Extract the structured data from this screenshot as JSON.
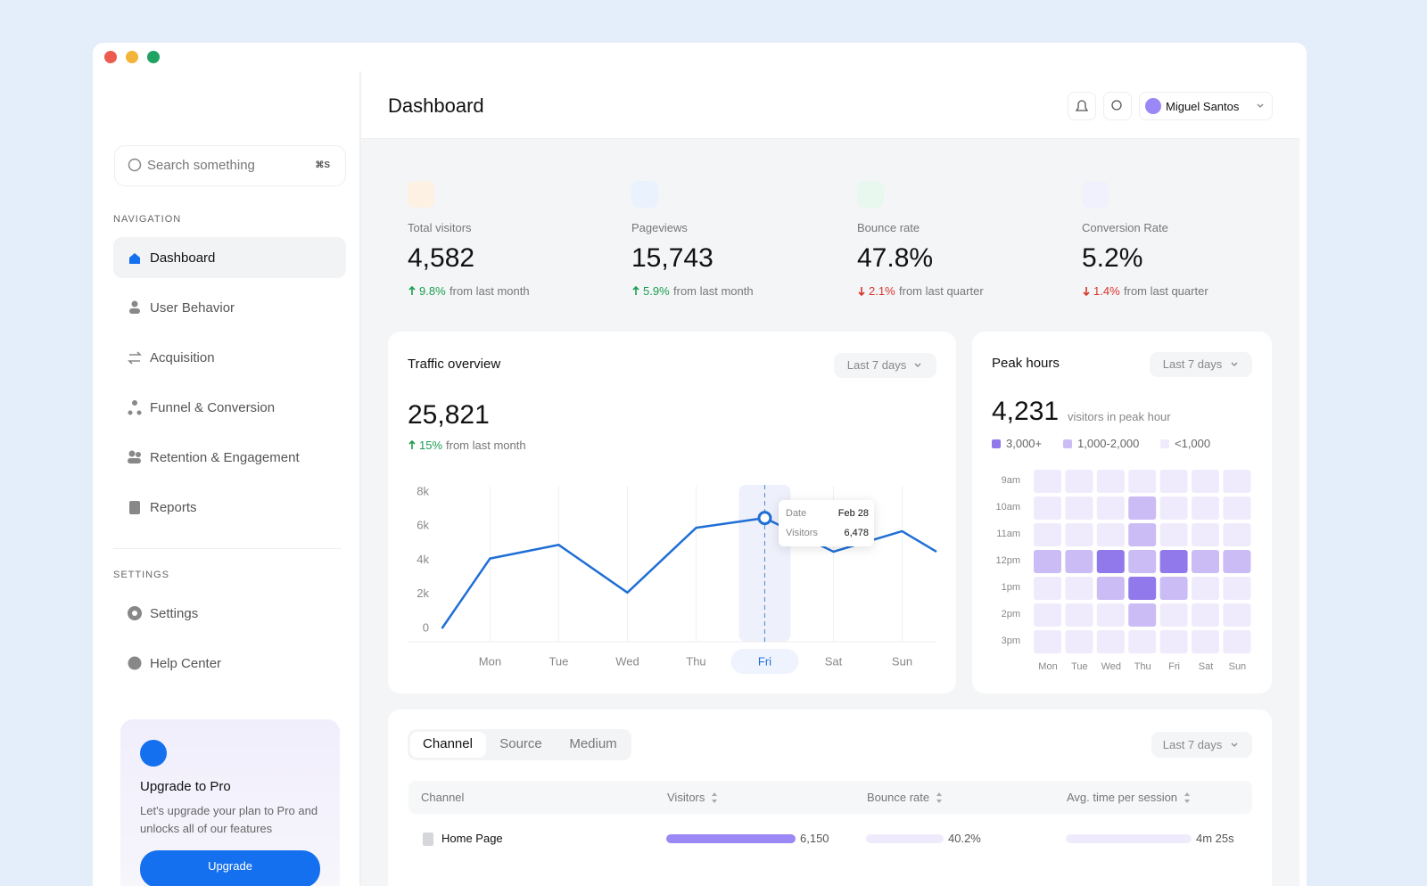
{
  "sidebar": {
    "search": {
      "placeholder": "Search something",
      "shortcut": "⌘S"
    },
    "navigation": {
      "heading": "NAVIGATION",
      "items": [
        "Dashboard",
        "User Behavior",
        "Acquisition",
        "Funnel & Conversion",
        "Retention & Engagement",
        "Reports"
      ],
      "active": 0
    },
    "settings": {
      "heading": "SETTINGS",
      "items": [
        "Settings",
        "Help Center"
      ]
    },
    "upgrade": {
      "title": "Upgrade to Pro",
      "text": "Let's upgrade your plan to Pro and unlocks all of our features",
      "button": "Upgrade"
    }
  },
  "header": {
    "title": "Dashboard",
    "user": "Miguel Santos"
  },
  "stats": [
    {
      "label": "Total visitors",
      "value": "4,582",
      "change": "9.8%",
      "period": "from last month",
      "trend": "up",
      "color": "#fdf1e3"
    },
    {
      "label": "Pageviews",
      "value": "15,743",
      "change": "5.9%",
      "period": "from last month",
      "trend": "up",
      "color": "#eaf2fe"
    },
    {
      "label": "Bounce rate",
      "value": "47.8%",
      "change": "2.1%",
      "period": "from last quarter",
      "trend": "down",
      "color": "#e8f8ee"
    },
    {
      "label": "Conversion Rate",
      "value": "5.2%",
      "change": "1.4%",
      "period": "from last quarter",
      "trend": "down",
      "color": "#f1f0fd"
    }
  ],
  "traffic": {
    "title": "Traffic overview",
    "range": "Last 7 days",
    "total": "25,821",
    "change": "15%",
    "period": "from last month",
    "chart_data": {
      "type": "line",
      "color": "#1f6fd6",
      "x": [
        0.3,
        1,
        2,
        3,
        4,
        5,
        6,
        7,
        7.5
      ],
      "values": [
        0,
        4100,
        4900,
        2100,
        5900,
        6478,
        4500,
        5700,
        4500
      ],
      "xlim": [
        -0.2,
        7.5
      ],
      "xticks": [
        {
          "value": 1,
          "label": "Mon"
        },
        {
          "value": 2,
          "label": "Tue"
        },
        {
          "value": 3,
          "label": "Wed"
        },
        {
          "value": 4,
          "label": "Thu"
        },
        {
          "value": 5,
          "label": "Fri"
        },
        {
          "value": 6,
          "label": "Sat"
        },
        {
          "value": 7,
          "label": "Sun"
        }
      ],
      "ylim": [
        0,
        8000
      ],
      "yticks": [
        0,
        {
          "value": 2000,
          "label": "2k"
        },
        {
          "value": 4000,
          "label": "4k"
        },
        {
          "value": 6000,
          "label": "6k"
        },
        {
          "value": 8000,
          "label": "8k"
        }
      ],
      "highlight": 5,
      "tooltip": {
        "date_label": "Date",
        "date": "Feb 28",
        "visitors_label": "Visitors",
        "visitors": "6,478"
      }
    }
  },
  "peak": {
    "title": "Peak hours",
    "range": "Last 7 days",
    "value": "4,231",
    "caption": "visitors in peak hour",
    "legend": [
      {
        "label": "3,000+",
        "color": "#9179ec"
      },
      {
        "label": "1,000-2,000",
        "color": "#cbbcf6"
      },
      {
        "label": "<1,000",
        "color": "#efebfc"
      }
    ],
    "rows": [
      "9am",
      "10am",
      "11am",
      "12pm",
      "1pm",
      "2pm",
      "3pm"
    ],
    "columns": [
      "Mon",
      "Tue",
      "Wed",
      "Thu",
      "Fri",
      "Sat",
      "Sun"
    ],
    "cells": [
      [
        2,
        2,
        2,
        2,
        2,
        2,
        2
      ],
      [
        2,
        2,
        2,
        1,
        2,
        2,
        2
      ],
      [
        2,
        2,
        2,
        1,
        2,
        2,
        2
      ],
      [
        1,
        1,
        0,
        1,
        0,
        1,
        1
      ],
      [
        2,
        2,
        1,
        0,
        1,
        2,
        2
      ],
      [
        2,
        2,
        2,
        1,
        2,
        2,
        2
      ],
      [
        2,
        2,
        2,
        2,
        2,
        2,
        2
      ]
    ]
  },
  "table": {
    "tabs": [
      "Channel",
      "Source",
      "Medium"
    ],
    "active_tab": 0,
    "range": "Last 7 days",
    "columns": [
      "Channel",
      "Visitors",
      "Bounce rate",
      "Avg. time per session"
    ],
    "rows": [
      [
        "Home Page",
        "6,150",
        "40.2%",
        "4m 25s"
      ]
    ]
  }
}
